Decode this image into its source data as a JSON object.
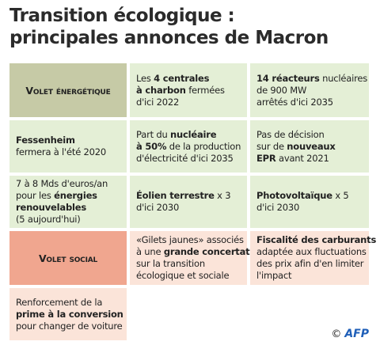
{
  "title": {
    "lines": [
      "Transition écologique :",
      "principales annonces de Macron"
    ]
  },
  "rows": [
    [
      {
        "kind": "header",
        "color": "#c6caa6",
        "lines": [
          [
            {
              "text": "Volet énergétique",
              "bold": false
            }
          ]
        ]
      },
      {
        "kind": "item",
        "color": "#e4efd6",
        "lines": [
          [
            {
              "text": "Les ",
              "bold": false
            },
            {
              "text": "4 centrales",
              "bold": true
            }
          ],
          [
            {
              "text": "à charbon",
              "bold": true
            },
            {
              "text": " fermées",
              "bold": false
            }
          ],
          [
            {
              "text": "d'ici 2022",
              "bold": false
            }
          ]
        ]
      },
      {
        "kind": "item",
        "color": "#e4efd6",
        "lines": [
          [
            {
              "text": "14 réacteurs",
              "bold": true
            },
            {
              "text": " nucléaires",
              "bold": false
            }
          ],
          [
            {
              "text": "de 900 MW",
              "bold": false
            }
          ],
          [
            {
              "text": "arrêtés d'ici 2035",
              "bold": false
            }
          ]
        ]
      }
    ],
    [
      {
        "kind": "item",
        "color": "#e4efd6",
        "lines": [
          [
            {
              "text": "Fessenheim",
              "bold": true
            }
          ],
          [
            {
              "text": "fermera à l'été 2020",
              "bold": false
            }
          ]
        ]
      },
      {
        "kind": "item",
        "color": "#e4efd6",
        "lines": [
          [
            {
              "text": "Part du ",
              "bold": false
            },
            {
              "text": "nucléaire",
              "bold": true
            }
          ],
          [
            {
              "text": "à 50%",
              "bold": true
            },
            {
              "text": " de la production",
              "bold": false
            }
          ],
          [
            {
              "text": "d'électricité d'ici 2035",
              "bold": false
            }
          ]
        ]
      },
      {
        "kind": "item",
        "color": "#e4efd6",
        "lines": [
          [
            {
              "text": "Pas de décision",
              "bold": false
            }
          ],
          [
            {
              "text": "sur de ",
              "bold": false
            },
            {
              "text": "nouveaux",
              "bold": true
            }
          ],
          [
            {
              "text": "EPR",
              "bold": true
            },
            {
              "text": " avant 2021",
              "bold": false
            }
          ]
        ]
      }
    ],
    [
      {
        "kind": "item",
        "color": "#e4efd6",
        "lines": [
          [
            {
              "text": "7 à 8 Mds d'euros/an",
              "bold": false
            }
          ],
          [
            {
              "text": "pour les ",
              "bold": false
            },
            {
              "text": "énergies",
              "bold": true
            }
          ],
          [
            {
              "text": "renouvelables",
              "bold": true
            }
          ],
          [
            {
              "text": "(5 aujourd'hui)",
              "bold": false
            }
          ]
        ]
      },
      {
        "kind": "item",
        "color": "#e4efd6",
        "lines": [
          [
            {
              "text": "Éolien terrestre",
              "bold": true
            },
            {
              "text": " x 3",
              "bold": false
            }
          ],
          [
            {
              "text": "d'ici 2030",
              "bold": false
            }
          ]
        ]
      },
      {
        "kind": "item",
        "color": "#e4efd6",
        "lines": [
          [
            {
              "text": "Photovoltaïque",
              "bold": true
            },
            {
              "text": " x 5",
              "bold": false
            }
          ],
          [
            {
              "text": "d'ici 2030",
              "bold": false
            }
          ]
        ]
      }
    ],
    [
      {
        "kind": "header",
        "color": "#f0a68f",
        "lines": [
          [
            {
              "text": "Volet social",
              "bold": false
            }
          ]
        ]
      },
      {
        "kind": "item",
        "color": "#fbe4d9",
        "lines": [
          [
            {
              "text": "«Gilets jaunes» associés",
              "bold": false
            }
          ],
          [
            {
              "text": "à une ",
              "bold": false
            },
            {
              "text": "grande concertation",
              "bold": true
            }
          ],
          [
            {
              "text": "sur la transition",
              "bold": false
            }
          ],
          [
            {
              "text": "écologique et sociale",
              "bold": false
            }
          ]
        ]
      },
      {
        "kind": "item",
        "color": "#fbe4d9",
        "lines": [
          [
            {
              "text": "Fiscalité des carburants",
              "bold": true
            }
          ],
          [
            {
              "text": "adaptée aux fluctuations",
              "bold": false
            }
          ],
          [
            {
              "text": "des prix afin d'en limiter",
              "bold": false
            }
          ],
          [
            {
              "text": "l'impact",
              "bold": false
            }
          ]
        ]
      }
    ],
    [
      {
        "kind": "item",
        "color": "#fbe4d9",
        "lines": [
          [
            {
              "text": "Renforcement de la",
              "bold": false
            }
          ],
          [
            {
              "text": "prime à la conversion",
              "bold": true
            }
          ],
          [
            {
              "text": "pour changer de voiture",
              "bold": false
            }
          ]
        ]
      }
    ]
  ],
  "credit": "©",
  "logo": "AFP"
}
